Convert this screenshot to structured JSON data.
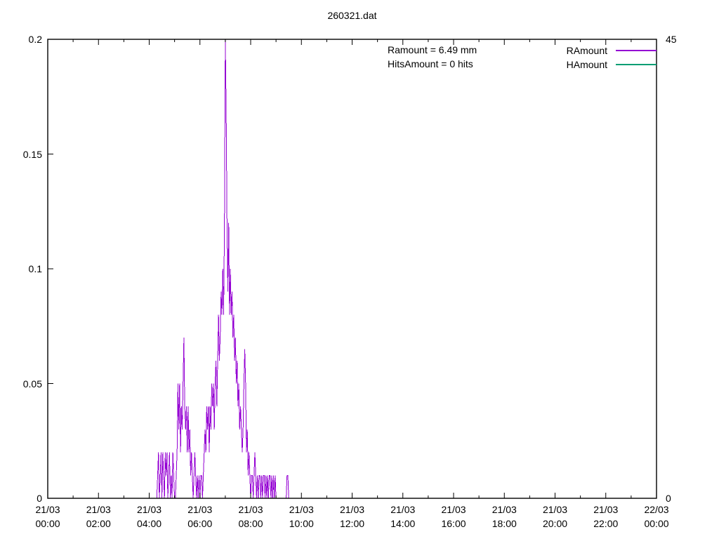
{
  "chart_data": {
    "type": "line",
    "title": "260321.dat",
    "annotations": [
      {
        "text": "Ramount = 6.49 mm"
      },
      {
        "text": "HitsAmount = 0 hits"
      }
    ],
    "legend_position": "top-right-inside",
    "grid": false,
    "x_axis": {
      "kind": "time",
      "range_minutes": [
        0,
        1440
      ],
      "major_tick_every_min": 120,
      "minor_tick_every_min": 60,
      "tick_labels": [
        {
          "min": 0,
          "line1": "21/03",
          "line2": "00:00"
        },
        {
          "min": 120,
          "line1": "21/03",
          "line2": "02:00"
        },
        {
          "min": 240,
          "line1": "21/03",
          "line2": "04:00"
        },
        {
          "min": 360,
          "line1": "21/03",
          "line2": "06:00"
        },
        {
          "min": 480,
          "line1": "21/03",
          "line2": "08:00"
        },
        {
          "min": 600,
          "line1": "21/03",
          "line2": "10:00"
        },
        {
          "min": 720,
          "line1": "21/03",
          "line2": "12:00"
        },
        {
          "min": 840,
          "line1": "21/03",
          "line2": "14:00"
        },
        {
          "min": 960,
          "line1": "21/03",
          "line2": "16:00"
        },
        {
          "min": 1080,
          "line1": "21/03",
          "line2": "18:00"
        },
        {
          "min": 1200,
          "line1": "21/03",
          "line2": "20:00"
        },
        {
          "min": 1320,
          "line1": "21/03",
          "line2": "22:00"
        },
        {
          "min": 1440,
          "line1": "22/03",
          "line2": "00:00"
        }
      ]
    },
    "y_axis": {
      "range": [
        0,
        0.2
      ],
      "ticks": [
        {
          "value": 0,
          "label": "0"
        },
        {
          "value": 0.05,
          "label": "0.05"
        },
        {
          "value": 0.1,
          "label": "0.1"
        },
        {
          "value": 0.15,
          "label": "0.15"
        },
        {
          "value": 0.2,
          "label": "0.2"
        }
      ]
    },
    "y2_axis": {
      "range": [
        0,
        45
      ],
      "ticks": [
        {
          "value": 45,
          "label": "45"
        },
        {
          "value": 0,
          "label": "0"
        }
      ]
    },
    "series": [
      {
        "name": "RAmount",
        "color": "#9400d3",
        "axis": "y1",
        "points_min_value": [
          [
            258,
            0
          ],
          [
            260,
            0.01
          ],
          [
            262,
            0.02
          ],
          [
            264,
            0
          ],
          [
            266,
            0.01
          ],
          [
            268,
            0.02
          ],
          [
            270,
            0
          ],
          [
            272,
            0.02
          ],
          [
            274,
            0.01
          ],
          [
            276,
            0
          ],
          [
            278,
            0.02
          ],
          [
            280,
            0.01
          ],
          [
            282,
            0.02
          ],
          [
            284,
            0
          ],
          [
            286,
            0.01
          ],
          [
            288,
            0.02
          ],
          [
            290,
            0
          ],
          [
            292,
            0.01
          ],
          [
            294,
            0
          ],
          [
            296,
            0.02
          ],
          [
            298,
            0.01
          ],
          [
            300,
            0
          ],
          [
            302,
            0
          ],
          [
            304,
            0.01
          ],
          [
            306,
            0.02
          ],
          [
            308,
            0.05
          ],
          [
            310,
            0.03
          ],
          [
            312,
            0.05
          ],
          [
            314,
            0.02
          ],
          [
            316,
            0.04
          ],
          [
            318,
            0.03
          ],
          [
            320,
            0.05
          ],
          [
            322,
            0.07
          ],
          [
            324,
            0.04
          ],
          [
            326,
            0.03
          ],
          [
            328,
            0.04
          ],
          [
            330,
            0.02
          ],
          [
            332,
            0.04
          ],
          [
            334,
            0.02
          ],
          [
            336,
            0.03
          ],
          [
            338,
            0.01
          ],
          [
            340,
            0.02
          ],
          [
            342,
            0.01
          ],
          [
            344,
            0
          ],
          [
            346,
            0.01
          ],
          [
            348,
            0.02
          ],
          [
            350,
            0.01
          ],
          [
            352,
            0
          ],
          [
            354,
            0.01
          ],
          [
            356,
            0
          ],
          [
            358,
            0.01
          ],
          [
            360,
            0
          ],
          [
            362,
            0.01
          ],
          [
            364,
            0.01
          ],
          [
            366,
            0
          ],
          [
            368,
            0.01
          ],
          [
            370,
            0.02
          ],
          [
            372,
            0.03
          ],
          [
            374,
            0.02
          ],
          [
            376,
            0.04
          ],
          [
            378,
            0.03
          ],
          [
            380,
            0.04
          ],
          [
            382,
            0.02
          ],
          [
            384,
            0.04
          ],
          [
            386,
            0.03
          ],
          [
            388,
            0.05
          ],
          [
            390,
            0.04
          ],
          [
            392,
            0.05
          ],
          [
            394,
            0.03
          ],
          [
            396,
            0.05
          ],
          [
            398,
            0.06
          ],
          [
            400,
            0.04
          ],
          [
            402,
            0.06
          ],
          [
            404,
            0.08
          ],
          [
            406,
            0.06
          ],
          [
            408,
            0.07
          ],
          [
            410,
            0.09
          ],
          [
            412,
            0.08
          ],
          [
            414,
            0.1
          ],
          [
            416,
            0.08
          ],
          [
            418,
            0.12
          ],
          [
            420,
            0.2
          ],
          [
            422,
            0.17
          ],
          [
            424,
            0.12
          ],
          [
            426,
            0.09
          ],
          [
            428,
            0.12
          ],
          [
            430,
            0.08
          ],
          [
            432,
            0.1
          ],
          [
            434,
            0.08
          ],
          [
            436,
            0.09
          ],
          [
            438,
            0.07
          ],
          [
            440,
            0.08
          ],
          [
            442,
            0.06
          ],
          [
            444,
            0.07
          ],
          [
            446,
            0.05
          ],
          [
            448,
            0.06
          ],
          [
            450,
            0.04
          ],
          [
            452,
            0.05
          ],
          [
            454,
            0.03
          ],
          [
            456,
            0.04
          ],
          [
            458,
            0.03
          ],
          [
            460,
            0.02
          ],
          [
            462,
            0.03
          ],
          [
            464,
            0.05
          ],
          [
            466,
            0.065
          ],
          [
            468,
            0.05
          ],
          [
            470,
            0.02
          ],
          [
            472,
            0.03
          ],
          [
            474,
            0.01
          ],
          [
            476,
            0.02
          ],
          [
            478,
            0.01
          ],
          [
            480,
            0
          ],
          [
            482,
            0.01
          ],
          [
            484,
            0.01
          ],
          [
            486,
            0
          ],
          [
            488,
            0.01
          ],
          [
            490,
            0.02
          ],
          [
            492,
            0.01
          ],
          [
            494,
            0
          ],
          [
            496,
            0.01
          ],
          [
            498,
            0
          ],
          [
            500,
            0.01
          ],
          [
            502,
            0.01
          ],
          [
            504,
            0
          ],
          [
            506,
            0.01
          ],
          [
            508,
            0
          ],
          [
            510,
            0.01
          ],
          [
            512,
            0.01
          ],
          [
            514,
            0
          ],
          [
            516,
            0.01
          ],
          [
            518,
            0
          ],
          [
            520,
            0.01
          ],
          [
            522,
            0
          ],
          [
            524,
            0.01
          ],
          [
            526,
            0.01
          ],
          [
            528,
            0
          ],
          [
            530,
            0.01
          ],
          [
            532,
            0
          ],
          [
            534,
            0.01
          ],
          [
            536,
            0
          ],
          [
            538,
            0.01
          ],
          [
            540,
            0
          ],
          [
            542,
            0
          ],
          [
            564,
            0
          ],
          [
            566,
            0.01
          ],
          [
            568,
            0.01
          ],
          [
            570,
            0
          ]
        ]
      },
      {
        "name": "HAmount",
        "color": "#009e73",
        "axis": "y2",
        "points_min_value": [
          [
            0,
            0
          ],
          [
            1440,
            0
          ]
        ]
      }
    ]
  }
}
